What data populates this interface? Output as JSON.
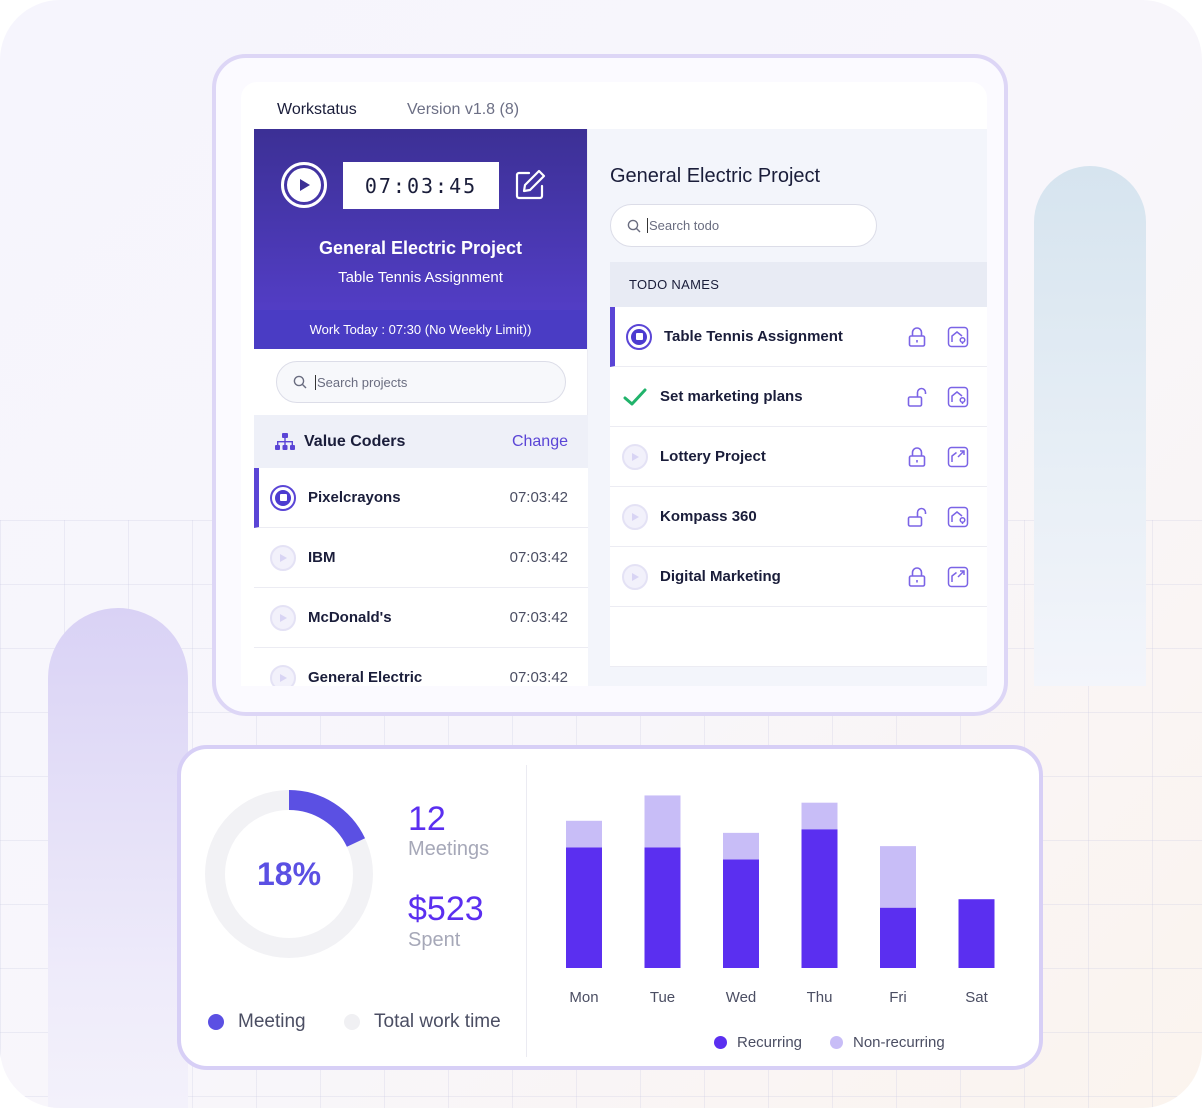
{
  "app": {
    "tabs": {
      "main": "Workstatus",
      "version": "Version v1.8 (8)"
    },
    "timer": {
      "time": "07:03:45",
      "project": "General Electric Project",
      "task": "Table Tennis Assignment",
      "work_today": "Work Today : 07:30 (No Weekly Limit))"
    },
    "projects": {
      "search_placeholder": "Search projects",
      "org_name": "Value Coders",
      "change_label": "Change",
      "items": [
        {
          "name": "Pixelcrayons",
          "time": "07:03:42",
          "state": "active"
        },
        {
          "name": "IBM",
          "time": "07:03:42",
          "state": "idle"
        },
        {
          "name": "McDonald's",
          "time": "07:03:42",
          "state": "idle"
        },
        {
          "name": "General Electric",
          "time": "07:03:42",
          "state": "idle"
        }
      ]
    },
    "todos": {
      "title": "General Electric Project",
      "search_placeholder": "Search todo",
      "header": "TODO NAMES",
      "items": [
        {
          "name": "Table Tennis Assignment",
          "status": "active",
          "lock": "locked",
          "action": "home-pin"
        },
        {
          "name": "Set marketing plans",
          "status": "done",
          "lock": "unlocked",
          "action": "home-pin"
        },
        {
          "name": "Lottery Project",
          "status": "idle",
          "lock": "locked",
          "action": "export"
        },
        {
          "name": "Kompass 360",
          "status": "idle",
          "lock": "unlocked",
          "action": "home-pin"
        },
        {
          "name": "Digital Marketing",
          "status": "idle",
          "lock": "locked",
          "action": "export"
        }
      ]
    }
  },
  "stats": {
    "donut_percent": "18%",
    "donut_value": 0.18,
    "meetings_count": "12",
    "meetings_label": "Meetings",
    "spent_amount": "$523",
    "spent_label": "Spent",
    "legend": {
      "meeting": "Meeting",
      "total": "Total work time"
    },
    "colors": {
      "meeting": "#5b50e3",
      "total": "#f2f2f5"
    }
  },
  "chart_data": {
    "type": "bar",
    "stacked": true,
    "categories": [
      "Mon",
      "Tue",
      "Wed",
      "Thu",
      "Fri",
      "Sat"
    ],
    "series": [
      {
        "name": "Recurring",
        "color": "#5b2ff0",
        "values": [
          100,
          100,
          90,
          115,
          50,
          57
        ]
      },
      {
        "name": "Non-recurring",
        "color": "#c8bdf7",
        "values": [
          22,
          43,
          22,
          22,
          51,
          0
        ]
      }
    ],
    "ylim": [
      0,
      150
    ],
    "grid": false,
    "legend": "bottom"
  }
}
